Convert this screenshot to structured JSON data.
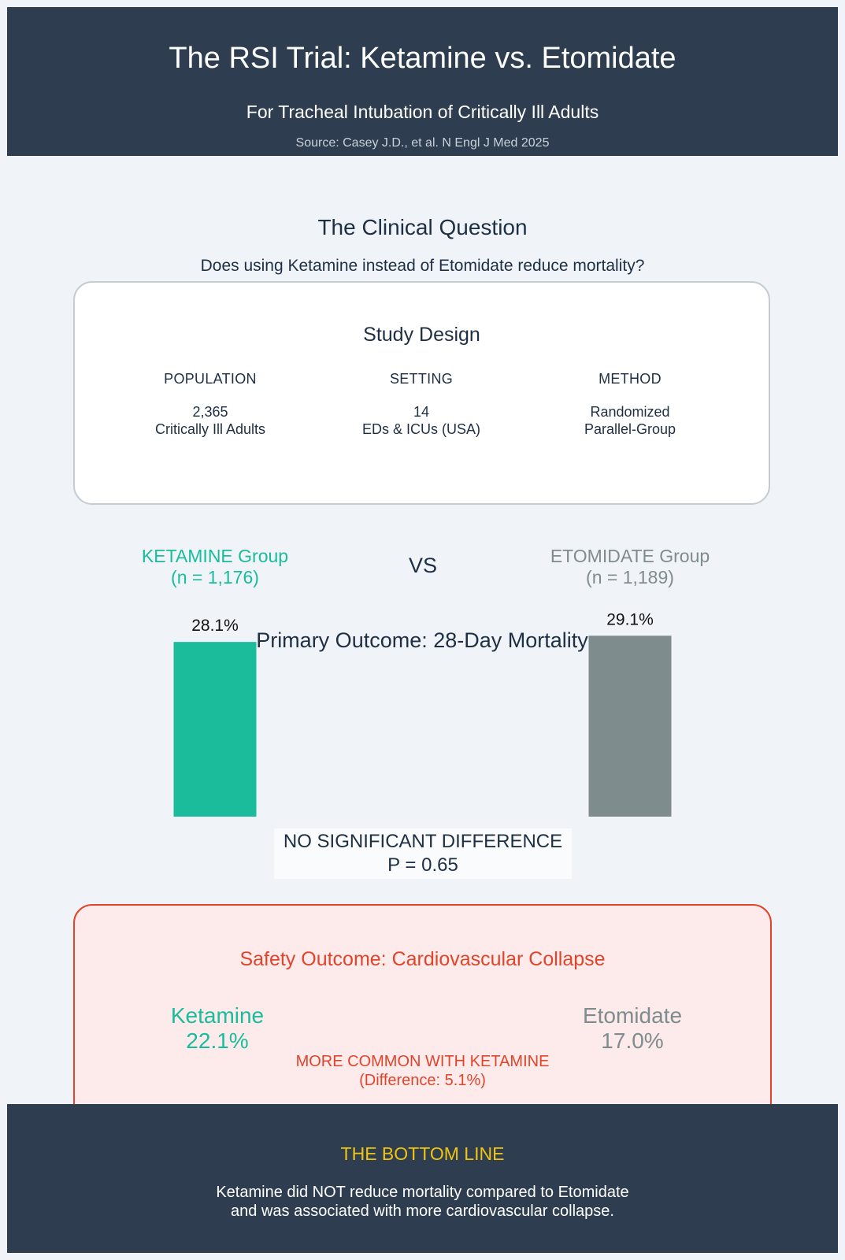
{
  "header": {
    "title": "The RSI Trial: Ketamine vs. Etomidate",
    "subtitle": "For Tracheal Intubation of Critically Ill Adults",
    "source": "Source: Casey J.D., et al. N Engl J Med 2025"
  },
  "question": {
    "heading": "The Clinical Question",
    "text": "Does using Ketamine instead of Etomidate reduce mortality?"
  },
  "design": {
    "heading": "Study Design",
    "columns": [
      {
        "label": "POPULATION",
        "value1": "2,365",
        "value2": "Critically Ill Adults"
      },
      {
        "label": "SETTING",
        "value1": "14",
        "value2": "EDs & ICUs (USA)"
      },
      {
        "label": "METHOD",
        "value1": "Randomized",
        "value2": "Parallel-Group"
      }
    ]
  },
  "comparison": {
    "ketamine_label": "KETAMINE Group",
    "ketamine_n": "(n = 1,176)",
    "vs": "VS",
    "etomidate_label": "ETOMIDATE Group",
    "etomidate_n": "(n = 1,189)",
    "significance": "NO SIGNIFICANT DIFFERENCE",
    "p_value": "P = 0.65"
  },
  "chart_data": {
    "type": "bar",
    "title": "Primary Outcome: 28-Day Mortality",
    "categories": [
      "Ketamine",
      "Etomidate"
    ],
    "values": [
      28.1,
      29.1
    ],
    "value_labels": [
      "28.1%",
      "29.1%"
    ],
    "colors": [
      "#1abc9c",
      "#7f8c8d"
    ],
    "ylim": [
      0,
      38
    ]
  },
  "safety": {
    "heading": "Safety Outcome: Cardiovascular Collapse",
    "ketamine_label": "Ketamine",
    "ketamine_value": "22.1%",
    "etomidate_label": "Etomidate",
    "etomidate_value": "17.0%",
    "note": "MORE COMMON WITH KETAMINE",
    "difference": "(Difference: 5.1%)"
  },
  "footer": {
    "heading": "THE BOTTOM LINE",
    "line1": "Ketamine did NOT reduce mortality compared to Etomidate",
    "line2": "and was associated with more cardiovascular collapse."
  },
  "colors": {
    "navy": "#2e3d50",
    "ketamine": "#1abc9c",
    "etomidate": "#7f8c8d",
    "alert": "#e0452c",
    "highlight": "#f1c40f"
  }
}
